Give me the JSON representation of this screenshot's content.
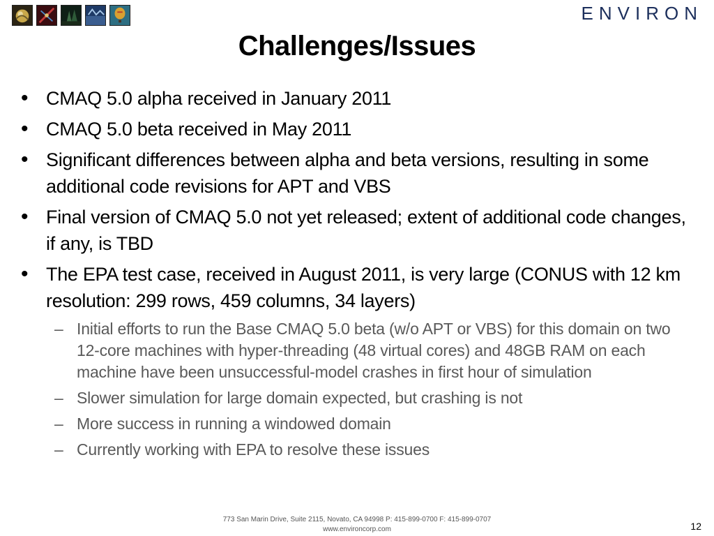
{
  "header": {
    "logo_text": "ENVIRON",
    "thumbnails": [
      {
        "name": "thumbnail-globe",
        "color": "#6a5a2a"
      },
      {
        "name": "thumbnail-molecule",
        "color": "#7a1c24"
      },
      {
        "name": "thumbnail-forest",
        "color": "#1f3b2a"
      },
      {
        "name": "thumbnail-water",
        "color": "#3a5d8f"
      },
      {
        "name": "thumbnail-balloon",
        "color": "#2d6e82"
      }
    ]
  },
  "slide": {
    "title": "Challenges/Issues",
    "bullets": [
      {
        "text": "CMAQ 5.0 alpha received in January 2011"
      },
      {
        "text": "CMAQ 5.0 beta received in May 2011"
      },
      {
        "text": "Significant differences between alpha and beta versions, resulting in some additional code revisions for APT and VBS"
      },
      {
        "text": "Final version of CMAQ 5.0 not yet released; extent of additional code changes, if any, is TBD"
      },
      {
        "text": "The EPA test case, received in August 2011, is very large (CONUS with 12 km resolution: 299 rows, 459 columns, 34 layers)"
      }
    ],
    "sub_bullets": [
      {
        "text": "Initial efforts to run the Base CMAQ 5.0 beta (w/o APT or VBS) for this domain on two 12-core machines with hyper-threading (48 virtual cores) and 48GB RAM on each machine have been unsuccessful-model crashes in first hour of simulation"
      },
      {
        "text": "Slower simulation for large domain expected, but crashing is not"
      },
      {
        "text": "More success in running a windowed domain"
      },
      {
        "text": "Currently working with EPA to resolve these issues"
      }
    ],
    "bullet_symbol": "•",
    "dash_symbol": "–"
  },
  "footer": {
    "address": "773 San Marin Drive, Suite 2115, Novato, CA 94998 P: 415-899-0700 F: 415-899-0707",
    "website": "www.environcorp.com",
    "page_number": "12"
  }
}
